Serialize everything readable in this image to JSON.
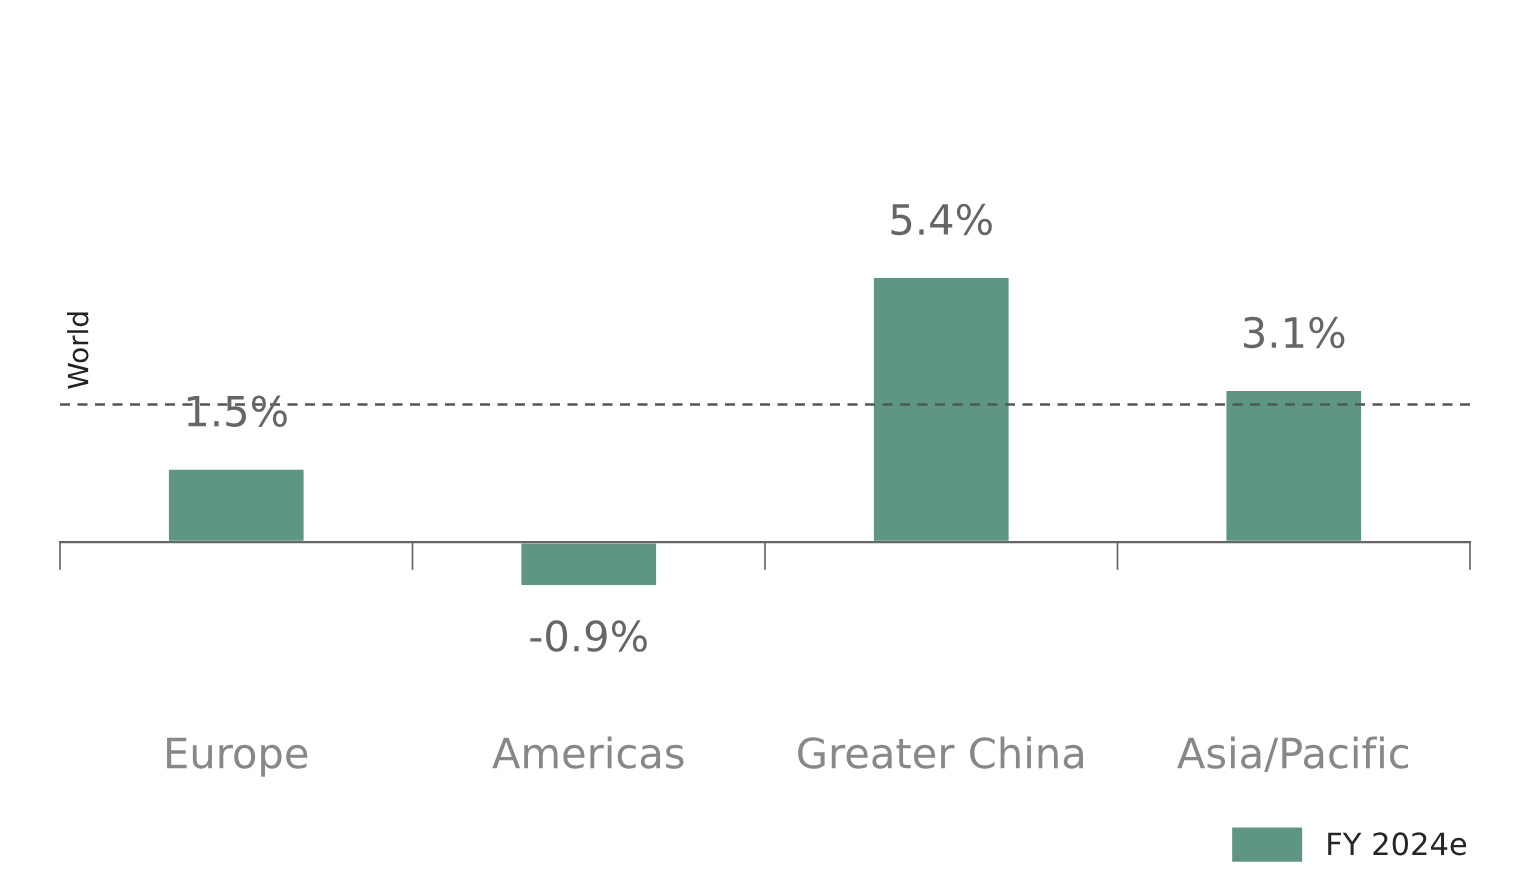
{
  "chart_data": {
    "type": "bar",
    "categories": [
      "Europe",
      "Americas",
      "Greater China",
      "Asia/Pacific"
    ],
    "series": [
      {
        "name": "FY 2024e",
        "color": "#5f9683",
        "values": [
          1.5,
          -0.9,
          5.4,
          3.1
        ],
        "value_labels": [
          "1.5%",
          "-0.9%",
          "5.4%",
          "3.1%"
        ]
      }
    ],
    "ref_lines": [
      {
        "axis": "y",
        "value": 2.8,
        "label": "World",
        "color": "#555555",
        "line_style": "dashed"
      }
    ],
    "legend": "bottom right",
    "grid": false
  }
}
